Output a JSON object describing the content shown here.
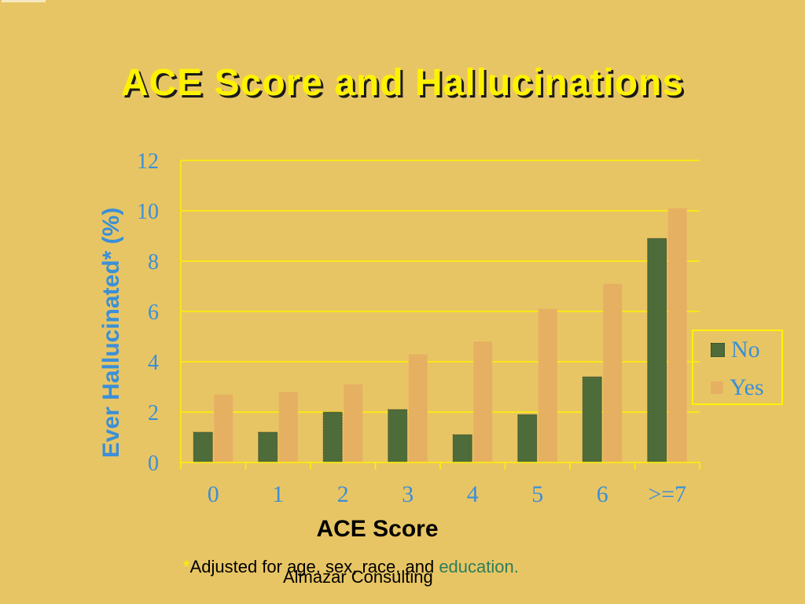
{
  "slide": {
    "title": "ACE Score and Hallucinations",
    "footnote_star": "*",
    "footnote_text": "Adjusted for age, sex, race, and ",
    "footnote_edu": "education.",
    "credit": "Almazar Consulting"
  },
  "chart_data": {
    "type": "bar",
    "title": "ACE Score and Hallucinations",
    "xlabel": "ACE Score",
    "ylabel": "Ever Hallucinated* (%)",
    "ylim": [
      0,
      12
    ],
    "yticks": [
      "0",
      "2",
      "4",
      "6",
      "8",
      "10",
      "12"
    ],
    "grid": true,
    "legend_position": "right",
    "categories": [
      "0",
      "1",
      "2",
      "3",
      "4",
      "5",
      "6",
      ">=7"
    ],
    "series": [
      {
        "name": "No",
        "color": "#4E6B3A",
        "values": [
          1.2,
          1.2,
          2.0,
          2.1,
          1.1,
          1.9,
          3.4,
          8.9
        ]
      },
      {
        "name": "Yes",
        "color": "#E6B062",
        "values": [
          2.7,
          2.8,
          3.1,
          4.3,
          4.8,
          6.1,
          7.1,
          10.1
        ]
      }
    ]
  },
  "colors": {
    "background": "#E8C564",
    "title": "#FFF200",
    "axis_text": "#3A8FD8",
    "grid": "#FFF200"
  }
}
